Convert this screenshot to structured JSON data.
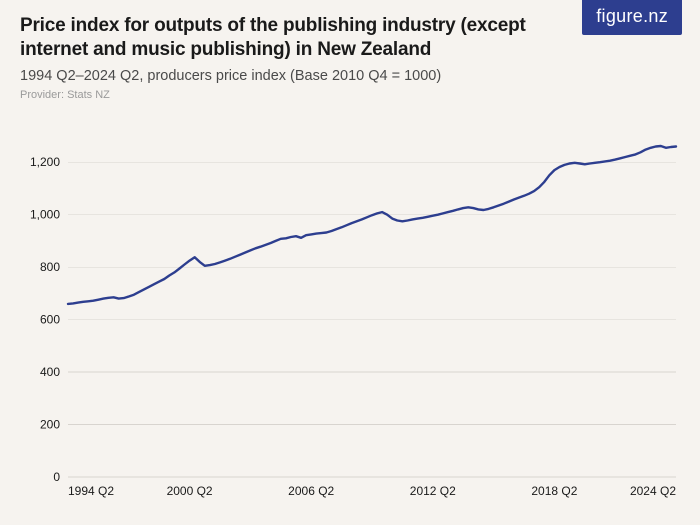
{
  "logo": {
    "text_main": "figure",
    "text_suffix": ".nz"
  },
  "header": {
    "title": "Price index for outputs of the publishing industry (except internet and music publishing) in New Zealand",
    "subtitle": "1994 Q2–2024 Q2, producers price index (Base 2010 Q4 = 1000)",
    "provider": "Provider: Stats NZ"
  },
  "chart": {
    "type": "line",
    "background_color": "#f6f3ef",
    "grid_color": "#d8d4cf",
    "line_color": "#2d3e8f",
    "line_width": 2.4,
    "axis_font_size": 12,
    "axis_font_color": "#1a1a1a",
    "y": {
      "min": 0,
      "max": 1300,
      "ticks": [
        0,
        200,
        400,
        600,
        800,
        1000,
        1200
      ],
      "tick_labels": [
        "0",
        "200",
        "400",
        "600",
        "800",
        "1,000",
        "1,200"
      ]
    },
    "x": {
      "min": 0,
      "max": 120,
      "ticks": [
        0,
        24,
        48,
        72,
        96,
        120
      ],
      "tick_labels": [
        "1994 Q2",
        "2000 Q2",
        "2006 Q2",
        "2012 Q2",
        "2018 Q2",
        "2024 Q2"
      ]
    },
    "series": [
      660,
      662,
      665,
      668,
      670,
      672,
      676,
      680,
      683,
      685,
      680,
      682,
      688,
      695,
      705,
      715,
      725,
      735,
      745,
      755,
      768,
      780,
      795,
      810,
      825,
      838,
      820,
      805,
      808,
      812,
      818,
      825,
      832,
      840,
      848,
      856,
      864,
      872,
      878,
      885,
      892,
      900,
      908,
      910,
      915,
      918,
      912,
      922,
      925,
      928,
      930,
      932,
      938,
      945,
      952,
      960,
      968,
      975,
      982,
      990,
      998,
      1005,
      1010,
      1000,
      985,
      978,
      975,
      978,
      982,
      985,
      988,
      992,
      996,
      1000,
      1005,
      1010,
      1015,
      1020,
      1025,
      1028,
      1025,
      1020,
      1018,
      1022,
      1028,
      1035,
      1042,
      1050,
      1058,
      1065,
      1072,
      1080,
      1090,
      1105,
      1125,
      1150,
      1170,
      1182,
      1190,
      1195,
      1198,
      1195,
      1192,
      1195,
      1198,
      1200,
      1203,
      1206,
      1210,
      1215,
      1220,
      1225,
      1230,
      1238,
      1248,
      1255,
      1260,
      1262,
      1255,
      1258,
      1260
    ]
  }
}
